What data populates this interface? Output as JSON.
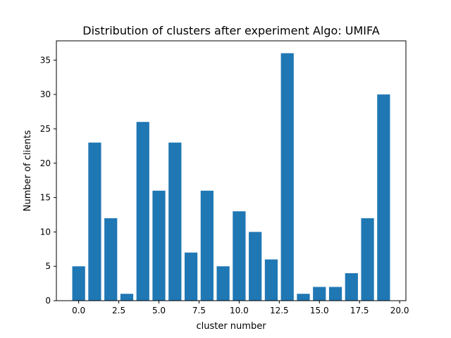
{
  "chart_data": {
    "type": "bar",
    "title": "Distribution of clusters after experiment Algo: UMIFA",
    "xlabel": "cluster number",
    "ylabel": "Number of clients",
    "x": [
      0,
      1,
      2,
      3,
      4,
      5,
      6,
      7,
      8,
      9,
      10,
      11,
      12,
      13,
      14,
      15,
      16,
      17,
      18,
      19
    ],
    "values": [
      5,
      23,
      12,
      1,
      26,
      16,
      23,
      7,
      16,
      5,
      13,
      10,
      6,
      36,
      1,
      2,
      2,
      4,
      12,
      30
    ],
    "xlim": [
      -1.39,
      20.39
    ],
    "ylim": [
      0,
      37.8
    ],
    "xticks": [
      0,
      2.5,
      5,
      7.5,
      10,
      12.5,
      15,
      17.5,
      20
    ],
    "xtick_labels": [
      "0.0",
      "2.5",
      "5.0",
      "7.5",
      "10.0",
      "12.5",
      "15.0",
      "17.5",
      "20.0"
    ],
    "yticks": [
      0,
      5,
      10,
      15,
      20,
      25,
      30,
      35
    ],
    "ytick_labels": [
      "0",
      "5",
      "10",
      "15",
      "20",
      "25",
      "30",
      "35"
    ],
    "bar_color": "#1f77b4",
    "grid": false,
    "legend": "none"
  }
}
